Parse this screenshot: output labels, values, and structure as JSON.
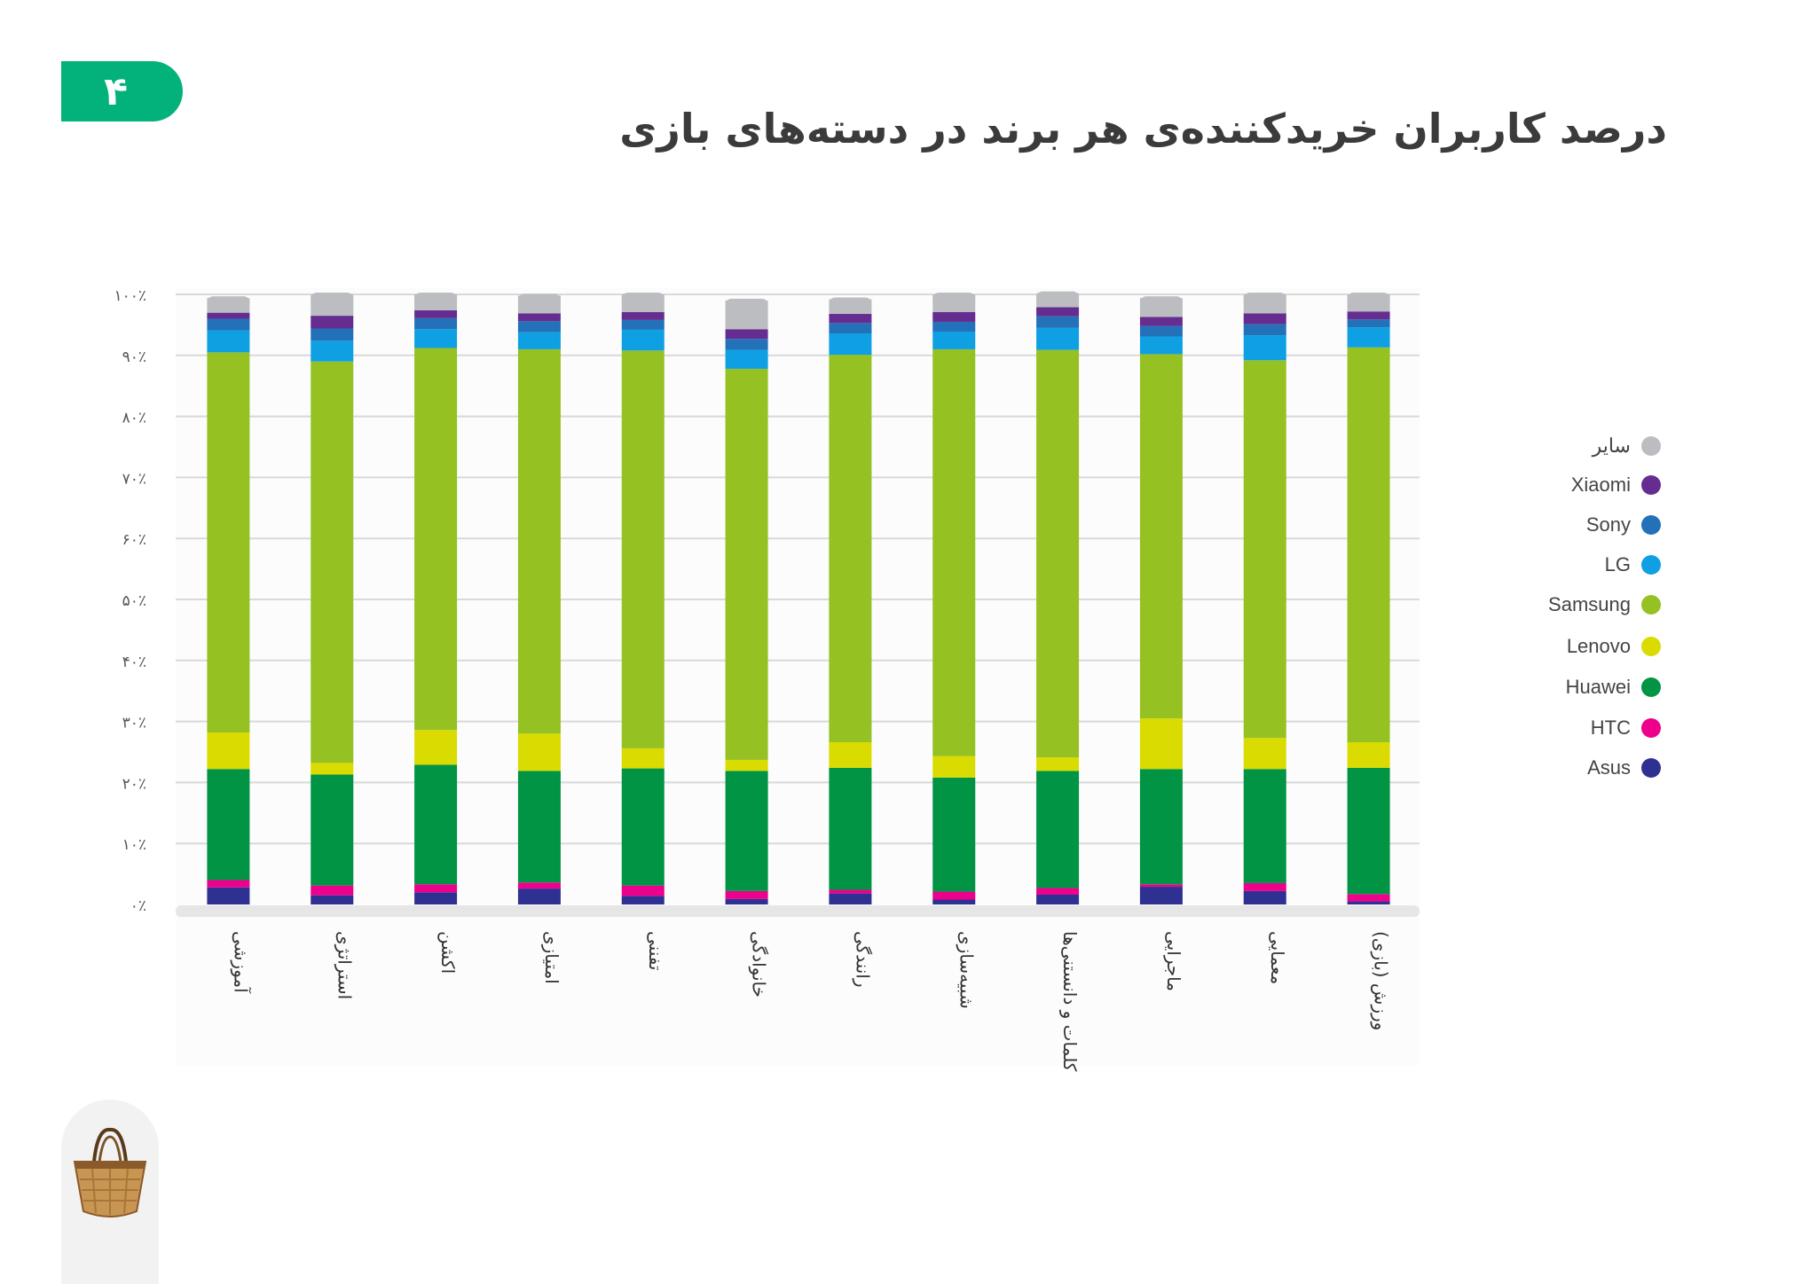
{
  "page": {
    "number": "۴",
    "title": "درصد کاربران خریدکننده‌ی هر برند در دسته‌های بازی"
  },
  "chart_data": {
    "type": "bar",
    "stacked": true,
    "title": "درصد کاربران خریدکننده‌ی هر برند در دسته‌های بازی",
    "ylim": [
      0,
      100
    ],
    "yticks": [
      "۰٪",
      "۱۰٪",
      "۲۰٪",
      "۳۰٪",
      "۴۰٪",
      "۵۰٪",
      "۶۰٪",
      "۷۰٪",
      "۸۰٪",
      "۹۰٪",
      "۱۰۰٪"
    ],
    "grid": true,
    "legend_position": "right",
    "categories": [
      "آموزشی",
      "استراتژی",
      "اکشن",
      "امتیازی",
      "تفننی",
      "خانوادگی",
      "رانندگی",
      "شبیه‌سازی",
      "کلمات و دانستنی‌ها",
      "ماجرایی",
      "معمایی",
      "ورزش (بازی)"
    ],
    "series": [
      {
        "name": "Asus",
        "color": "#2e3192",
        "values": [
          2.8,
          1.5,
          2.0,
          2.6,
          1.4,
          0.9,
          1.8,
          0.8,
          1.6,
          2.9,
          2.2,
          0.5
        ]
      },
      {
        "name": "HTC",
        "color": "#ec008c",
        "values": [
          1.2,
          1.6,
          1.3,
          1.0,
          1.7,
          1.3,
          0.6,
          1.3,
          1.1,
          0.4,
          1.3,
          1.2
        ]
      },
      {
        "name": "Huawei",
        "color": "#009444",
        "values": [
          18.2,
          18.2,
          19.6,
          18.3,
          19.2,
          19.7,
          20.0,
          18.7,
          19.2,
          18.9,
          18.7,
          20.7
        ]
      },
      {
        "name": "Lenovo",
        "color": "#dadb00",
        "values": [
          6.0,
          1.9,
          5.7,
          6.1,
          3.3,
          1.8,
          4.2,
          3.5,
          2.2,
          8.3,
          5.1,
          4.2
        ]
      },
      {
        "name": "Samsung",
        "color": "#95c123",
        "values": [
          62.3,
          65.8,
          62.6,
          63.0,
          65.2,
          64.1,
          63.5,
          66.7,
          66.8,
          59.7,
          61.9,
          64.7
        ]
      },
      {
        "name": "LG",
        "color": "#0ea0e2",
        "values": [
          3.6,
          3.4,
          3.1,
          2.8,
          3.4,
          3.1,
          3.5,
          2.9,
          3.6,
          2.9,
          4.1,
          3.3
        ]
      },
      {
        "name": "Sony",
        "color": "#2371b9",
        "values": [
          1.9,
          2.0,
          1.8,
          1.8,
          1.6,
          1.8,
          1.7,
          1.6,
          1.9,
          1.7,
          1.8,
          1.3
        ]
      },
      {
        "name": "Xiaomi",
        "color": "#662d91",
        "values": [
          1.0,
          2.1,
          1.3,
          1.3,
          1.3,
          1.6,
          1.5,
          1.6,
          1.5,
          1.5,
          1.8,
          1.3
        ]
      },
      {
        "name": "سایر",
        "color": "#bcbdc0",
        "values": [
          2.4,
          3.5,
          2.6,
          2.9,
          2.9,
          4.7,
          2.4,
          2.9,
          2.3,
          3.1,
          3.1,
          2.8
        ]
      }
    ]
  }
}
